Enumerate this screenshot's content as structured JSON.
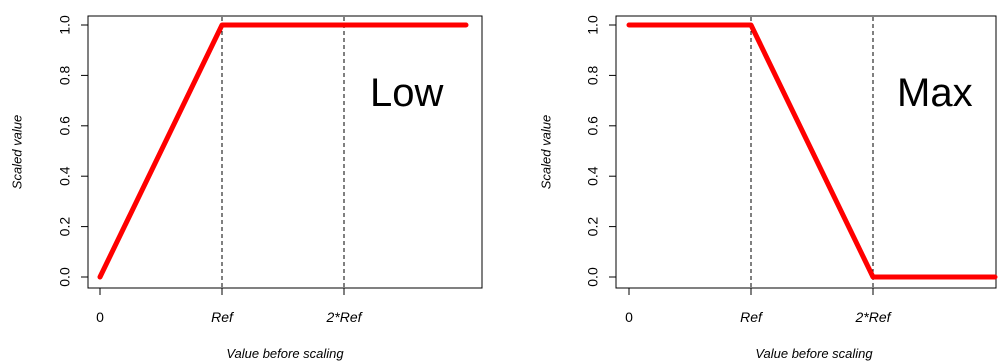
{
  "chart_data": [
    {
      "type": "line",
      "panel_label": "Low",
      "xlabel": "Value before scaling",
      "ylabel": "Scaled value",
      "x_tick_labels": [
        "0",
        "Ref",
        "2*Ref"
      ],
      "y_tick_labels": [
        "0.0",
        "0.2",
        "0.4",
        "0.6",
        "0.8",
        "1.0"
      ],
      "y_ticks": [
        0,
        0.2,
        0.4,
        0.6,
        0.8,
        1.0
      ],
      "x_ticks": [
        0,
        1,
        2
      ],
      "xlim": [
        0,
        3
      ],
      "ylim": [
        0,
        1
      ],
      "vlines": [
        1,
        2
      ],
      "x": [
        0,
        1,
        3
      ],
      "y": [
        0,
        1,
        1
      ],
      "line_color": "#ff0000",
      "grid": false
    },
    {
      "type": "line",
      "panel_label": "Max",
      "xlabel": "Value before scaling",
      "ylabel": "Scaled value",
      "x_tick_labels": [
        "0",
        "Ref",
        "2*Ref"
      ],
      "y_tick_labels": [
        "0.0",
        "0.2",
        "0.4",
        "0.6",
        "0.8",
        "1.0"
      ],
      "y_ticks": [
        0,
        0.2,
        0.4,
        0.6,
        0.8,
        1.0
      ],
      "x_ticks": [
        0,
        1,
        2
      ],
      "xlim": [
        0,
        3
      ],
      "ylim": [
        0,
        1
      ],
      "vlines": [
        1,
        2
      ],
      "x": [
        0,
        1,
        2,
        3
      ],
      "y": [
        1,
        1,
        0,
        0
      ],
      "line_color": "#ff0000",
      "grid": false
    }
  ]
}
